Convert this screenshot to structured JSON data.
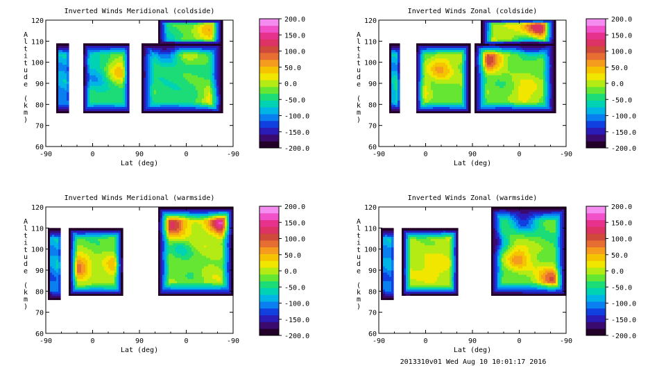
{
  "footer": "2013310v01 Wed Aug 10 10:01:17 2016",
  "colorbar": {
    "ticks": [
      "200.0",
      "150.0",
      "100.0",
      "50.0",
      "0.0",
      "-50.0",
      "-100.0",
      "-150.0",
      "-200.0"
    ],
    "colors": [
      "#220028",
      "#3a0a6e",
      "#2b1cb8",
      "#1040e0",
      "#0a80f0",
      "#00b4e6",
      "#00d2b4",
      "#1cdc78",
      "#64e632",
      "#b4eb14",
      "#f0e600",
      "#f5c300",
      "#f59b1e",
      "#e66e32",
      "#d04a3c",
      "#dc3264",
      "#e6328c",
      "#f050c8",
      "#f58cf0"
    ]
  },
  "chart_data": [
    {
      "type": "heatmap",
      "title": "Inverted Winds Meridional (coldside)",
      "xlabel": "Lat (deg)",
      "ylabel": "Altitude (km)",
      "xticks": [
        "-90",
        "0",
        "90",
        "0",
        "-90"
      ],
      "yticks": [
        "60",
        "70",
        "80",
        "90",
        "100",
        "110",
        "120"
      ],
      "ylim": [
        60,
        120
      ],
      "zlim": [
        -200,
        200
      ],
      "nlevels": 19,
      "blocks": [
        {
          "x0": -0.88,
          "x1": -0.75,
          "y0": 76,
          "y1": 109,
          "base": -100,
          "amp": 120
        },
        {
          "x0": -0.6,
          "x1": -0.1,
          "y0": 76,
          "y1": 109,
          "base": -40,
          "amp": 60
        },
        {
          "x0": 0.02,
          "x1": 0.88,
          "y0": 76,
          "y1": 109,
          "base": -40,
          "amp": 60
        },
        {
          "x0": 0.2,
          "x1": 0.88,
          "y0": 109,
          "y1": 120,
          "base": -40,
          "amp": 70
        }
      ],
      "features": [
        {
          "x": -0.22,
          "y": 96,
          "v": 40
        },
        {
          "x": -0.48,
          "y": 93,
          "v": -90
        },
        {
          "x": 0.5,
          "y": 106,
          "v": 10
        },
        {
          "x": 0.3,
          "y": 106,
          "v": -120
        },
        {
          "x": 0.82,
          "y": 82,
          "v": 50
        },
        {
          "x": 0.75,
          "y": 116,
          "v": 60
        }
      ]
    },
    {
      "type": "heatmap",
      "title": "Inverted Winds Zonal (coldside)",
      "xlabel": "Lat (deg)",
      "ylabel": "Altitude (km)",
      "xticks": [
        "-90",
        "0",
        "90",
        "0",
        "-90"
      ],
      "yticks": [
        "60",
        "70",
        "80",
        "90",
        "100",
        "110",
        "120"
      ],
      "ylim": [
        60,
        120
      ],
      "zlim": [
        -200,
        200
      ],
      "nlevels": 19,
      "blocks": [
        {
          "x0": -0.88,
          "x1": -0.78,
          "y0": 76,
          "y1": 109,
          "base": -100,
          "amp": 120
        },
        {
          "x0": -0.6,
          "x1": -0.03,
          "y0": 76,
          "y1": 109,
          "base": -20,
          "amp": 60
        },
        {
          "x0": 0.02,
          "x1": 0.88,
          "y0": 76,
          "y1": 109,
          "base": -20,
          "amp": 70
        },
        {
          "x0": 0.1,
          "x1": 0.88,
          "y0": 109,
          "y1": 120,
          "base": 0,
          "amp": 80
        }
      ],
      "features": [
        {
          "x": -0.65,
          "y": 86,
          "v": 90
        },
        {
          "x": -0.35,
          "y": 97,
          "v": 60
        },
        {
          "x": 0.18,
          "y": 102,
          "v": 120
        },
        {
          "x": 0.55,
          "y": 86,
          "v": 30
        },
        {
          "x": 0.62,
          "y": 108,
          "v": -120
        },
        {
          "x": 0.7,
          "y": 117,
          "v": 150
        }
      ]
    },
    {
      "type": "heatmap",
      "title": "Inverted Winds Meridional (warmside)",
      "xlabel": "Lat (deg)",
      "ylabel": "Altitude (km)",
      "xticks": [
        "-90",
        "0",
        "90",
        "0",
        "-90"
      ],
      "yticks": [
        "60",
        "70",
        "80",
        "90",
        "100",
        "110",
        "120"
      ],
      "ylim": [
        60,
        120
      ],
      "zlim": [
        -200,
        200
      ],
      "nlevels": 19,
      "blocks": [
        {
          "x0": -0.97,
          "x1": -0.84,
          "y0": 76,
          "y1": 110,
          "base": -100,
          "amp": 120
        },
        {
          "x0": -0.75,
          "x1": -0.18,
          "y0": 78,
          "y1": 110,
          "base": -20,
          "amp": 60
        },
        {
          "x0": 0.2,
          "x1": 1.0,
          "y0": 78,
          "y1": 120,
          "base": 0,
          "amp": 80
        }
      ],
      "features": [
        {
          "x": -0.65,
          "y": 92,
          "v": 80
        },
        {
          "x": -0.28,
          "y": 92,
          "v": 50
        },
        {
          "x": 0.45,
          "y": 100,
          "v": -60
        },
        {
          "x": 0.35,
          "y": 112,
          "v": 120
        },
        {
          "x": 0.88,
          "y": 113,
          "v": 170
        },
        {
          "x": 0.6,
          "y": 90,
          "v": -40
        }
      ]
    },
    {
      "type": "heatmap",
      "title": "Inverted Winds Zonal (warmside)",
      "xlabel": "Lat (deg)",
      "ylabel": "Altitude (km)",
      "xticks": [
        "-90",
        "0",
        "90",
        "0",
        "-90"
      ],
      "yticks": [
        "60",
        "70",
        "80",
        "90",
        "100",
        "110",
        "120"
      ],
      "ylim": [
        60,
        120
      ],
      "zlim": [
        -200,
        200
      ],
      "nlevels": 19,
      "blocks": [
        {
          "x0": -0.97,
          "x1": -0.84,
          "y0": 76,
          "y1": 110,
          "base": -100,
          "amp": 120
        },
        {
          "x0": -0.75,
          "x1": -0.15,
          "y0": 78,
          "y1": 110,
          "base": 0,
          "amp": 60
        },
        {
          "x": 0,
          "x0": 0.2,
          "x1": 1.0,
          "y0": 78,
          "y1": 120,
          "base": -20,
          "amp": 70
        }
      ],
      "features": [
        {
          "x": -0.4,
          "y": 92,
          "v": 40
        },
        {
          "x": 0.48,
          "y": 96,
          "v": 60
        },
        {
          "x": 0.85,
          "y": 86,
          "v": 90
        },
        {
          "x": 0.55,
          "y": 114,
          "v": -140
        },
        {
          "x": 0.25,
          "y": 104,
          "v": -100
        }
      ]
    }
  ]
}
